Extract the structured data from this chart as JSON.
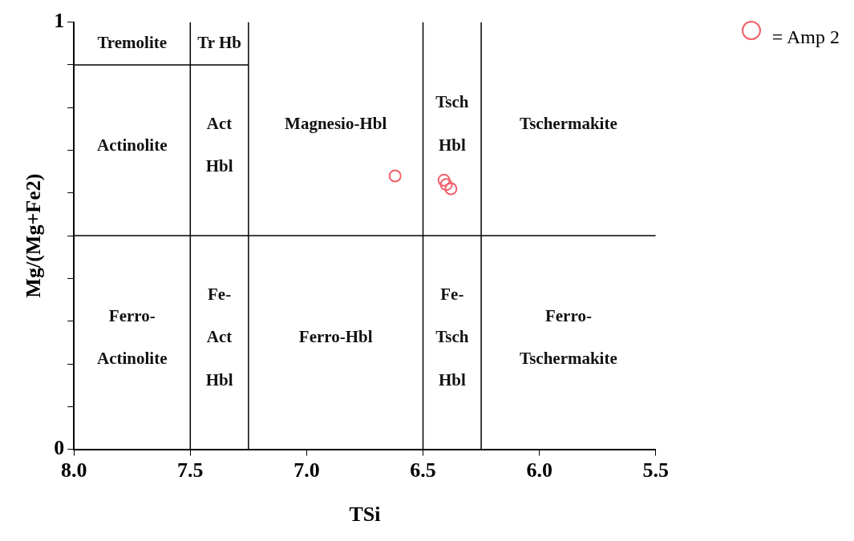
{
  "chart_data": {
    "type": "scatter",
    "xlabel": "TSi",
    "ylabel": "Mg/(Mg+Fe2)",
    "xlim": [
      8,
      5.5
    ],
    "ylim": [
      0,
      1
    ],
    "xticks": [
      {
        "value": 8,
        "label": "8.0"
      },
      {
        "value": 7.5,
        "label": "7.5"
      },
      {
        "value": 7,
        "label": "7.0"
      },
      {
        "value": 6.5,
        "label": "6.5"
      },
      {
        "value": 6,
        "label": "6.0"
      },
      {
        "value": 5.5,
        "label": "5.5"
      }
    ],
    "yticks": [
      0,
      {
        "value": 0.1,
        "label": null
      },
      {
        "value": 0.2,
        "label": null
      },
      {
        "value": 0.3,
        "label": null
      },
      {
        "value": 0.4,
        "label": null
      },
      {
        "value": 0.5,
        "label": null
      },
      {
        "value": 0.6,
        "label": null
      },
      {
        "value": 0.7,
        "label": null
      },
      {
        "value": 0.8,
        "label": null
      },
      {
        "value": 0.9,
        "label": null
      },
      1
    ],
    "grid": false,
    "legend": "top right",
    "marker": "circle",
    "series": [
      {
        "name": "= Amp 2",
        "color": "#f0606a",
        "x": [
          6.62,
          6.41,
          6.4,
          6.38
        ],
        "values": [
          0.64,
          0.63,
          0.62,
          0.61
        ]
      },
      {
        "type": "line",
        "color": "#000000",
        "marker": "none",
        "x": [
          7.5,
          7.5
        ],
        "values": [
          0,
          1
        ]
      },
      {
        "type": "line",
        "color": "#000000",
        "marker": "none",
        "x": [
          7.25,
          7.25
        ],
        "values": [
          0,
          1
        ]
      },
      {
        "type": "line",
        "color": "#000000",
        "marker": "none",
        "x": [
          6.5,
          6.5
        ],
        "values": [
          0,
          1
        ]
      },
      {
        "type": "line",
        "color": "#000000",
        "marker": "none",
        "x": [
          6.25,
          6.25
        ],
        "values": [
          0,
          1
        ]
      },
      {
        "type": "line",
        "color": "#000000",
        "marker": "none",
        "x": [
          8,
          5.5
        ],
        "values": [
          0.5,
          0.5
        ]
      },
      {
        "type": "line",
        "color": "#000000",
        "marker": "none",
        "x": [
          8,
          7.25
        ],
        "values": [
          0.9,
          0.9
        ]
      }
    ],
    "annotations": [
      "Tremolite",
      "Tr Hb",
      "Actinolite",
      "Act",
      "Hbl",
      "Magnesio-Hbl",
      "Tsch",
      "Hbl",
      "Tschermakite",
      "Ferro-",
      "Actinolite",
      "Fe-",
      "Act",
      "Hbl",
      "Ferro-Hbl",
      "Fe-",
      "Tsch",
      "Hbl",
      "Ferro-",
      "Tschermakite"
    ]
  }
}
